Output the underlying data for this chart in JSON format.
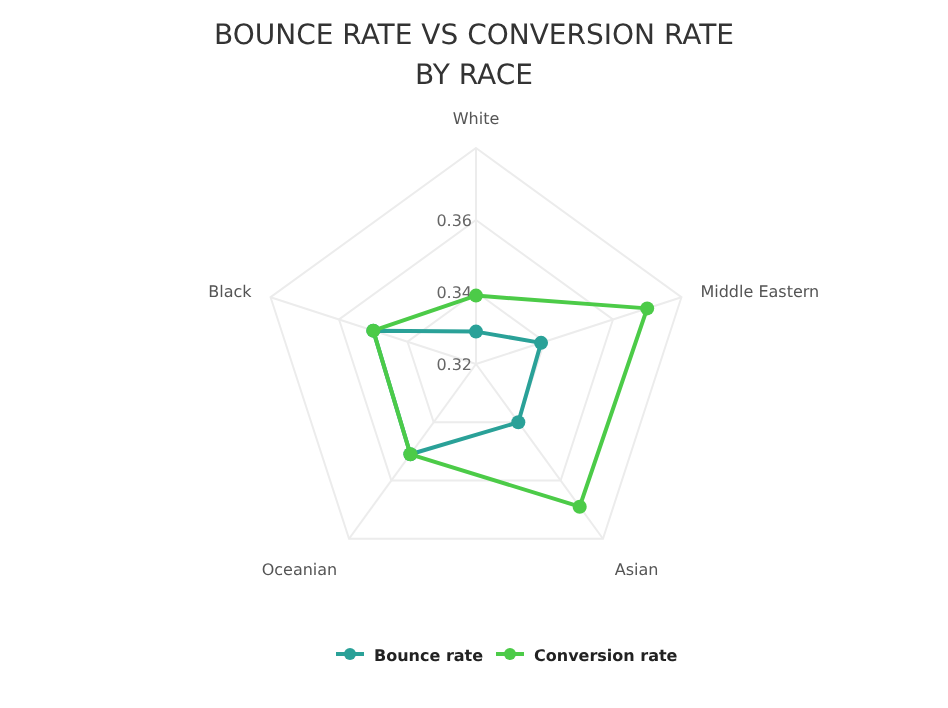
{
  "chart_data": {
    "type": "radar",
    "title": "BOUNCE RATE VS CONVERSION RATE BY RACE",
    "categories": [
      "White",
      "Middle Eastern",
      "Asian",
      "Oceanian",
      "Black"
    ],
    "series": [
      {
        "name": "Bounce rate",
        "color": "#2aa198",
        "values": [
          0.329,
          0.339,
          0.34,
          0.351,
          0.35
        ]
      },
      {
        "name": "Conversion rate",
        "color": "#4ccb48",
        "values": [
          0.339,
          0.37,
          0.369,
          0.351,
          0.35
        ]
      }
    ],
    "ylim": [
      0.32,
      0.38
    ],
    "yticks": [
      0.32,
      0.34,
      0.36
    ],
    "grid": true,
    "legend": "bottom",
    "marker": "circle"
  }
}
